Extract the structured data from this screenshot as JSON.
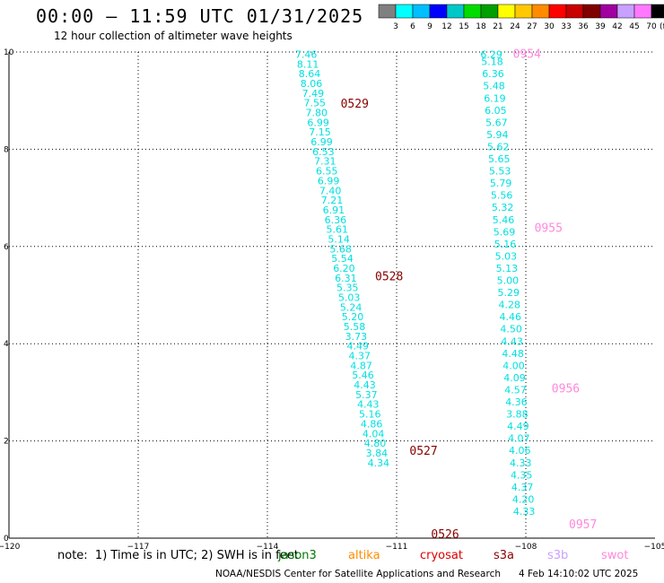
{
  "header": {
    "title": "00:00 – 11:59 UTC 01/31/2025",
    "subtitle": "12 hour collection of altimeter wave heights"
  },
  "colorbar": {
    "labels": [
      "3",
      "6",
      "9",
      "12",
      "15",
      "18",
      "21",
      "24",
      "27",
      "30",
      "33",
      "36",
      "39",
      "42",
      "45",
      "70"
    ],
    "unit": "(ft)",
    "colors": [
      "#808080",
      "#00ffff",
      "#00bfff",
      "#0000ff",
      "#00c8c8",
      "#00dc00",
      "#00a000",
      "#ffff00",
      "#ffc800",
      "#ff8c00",
      "#ff0000",
      "#c80000",
      "#800000",
      "#a000a0",
      "#c8a0ff",
      "#ff78ff",
      "#000000"
    ]
  },
  "footer": {
    "note": "note:  1) Time is in UTC; 2) SWH is in feet",
    "satellites": [
      {
        "name": "jason3",
        "color": "#007700"
      },
      {
        "name": "altika",
        "color": "#ff8c00"
      },
      {
        "name": "cryosat",
        "color": "#dd0000"
      },
      {
        "name": "s3a",
        "color": "#880000"
      },
      {
        "name": "s3b",
        "color": "#c8a0ff"
      },
      {
        "name": "swot",
        "color": "#ff88dd"
      }
    ],
    "credits": "NOAA/NESDIS Center for Satellite Applications and Research",
    "timestamp": "4 Feb 14:10:02 UTC 2025"
  },
  "chart_data": {
    "type": "scatter",
    "title": "",
    "xlabel": "",
    "ylabel": "",
    "xlim": [
      -120,
      -105
    ],
    "ylim": [
      0,
      10
    ],
    "x_ticks": [
      -120,
      -117,
      -114,
      -111,
      -108,
      -105
    ],
    "y_ticks": [
      0,
      2,
      4,
      6,
      8,
      10
    ],
    "x_tick_labels": [
      "−120",
      "−117",
      "−114",
      "−111",
      "−108",
      "−105"
    ],
    "y_tick_labels": [
      "0",
      "2",
      "4",
      "6",
      "8",
      "10"
    ],
    "grid": true,
    "value_color": "#00e0e0",
    "series": [
      {
        "name": "s3a",
        "points": [
          {
            "x": -113.1,
            "y": 9.88,
            "v": "7.46"
          },
          {
            "x": -113.06,
            "y": 9.68,
            "v": "8.11"
          },
          {
            "x": -113.02,
            "y": 9.48,
            "v": "8.64"
          },
          {
            "x": -112.98,
            "y": 9.28,
            "v": "8.06"
          },
          {
            "x": -112.94,
            "y": 9.08,
            "v": "7.49"
          },
          {
            "x": -112.9,
            "y": 8.88,
            "v": "7.55"
          },
          {
            "x": -112.86,
            "y": 8.68,
            "v": "7.80"
          },
          {
            "x": -112.82,
            "y": 8.48,
            "v": "6.99"
          },
          {
            "x": -112.78,
            "y": 8.28,
            "v": "7.15"
          },
          {
            "x": -112.74,
            "y": 8.08,
            "v": "6.99"
          },
          {
            "x": -112.7,
            "y": 7.88,
            "v": "6.53"
          },
          {
            "x": -112.66,
            "y": 7.68,
            "v": "7.31"
          },
          {
            "x": -112.62,
            "y": 7.48,
            "v": "6.55"
          },
          {
            "x": -112.58,
            "y": 7.28,
            "v": "6.99"
          },
          {
            "x": -112.54,
            "y": 7.08,
            "v": "7.40"
          },
          {
            "x": -112.5,
            "y": 6.88,
            "v": "7.21"
          },
          {
            "x": -112.46,
            "y": 6.68,
            "v": "6.91"
          },
          {
            "x": -112.42,
            "y": 6.48,
            "v": "6.36"
          },
          {
            "x": -112.38,
            "y": 6.28,
            "v": "5.61"
          },
          {
            "x": -112.34,
            "y": 6.08,
            "v": "5.14"
          },
          {
            "x": -112.3,
            "y": 5.88,
            "v": "5.68"
          },
          {
            "x": -112.26,
            "y": 5.68,
            "v": "5.54"
          },
          {
            "x": -112.22,
            "y": 5.48,
            "v": "6.20"
          },
          {
            "x": -112.18,
            "y": 5.28,
            "v": "6.31"
          },
          {
            "x": -112.14,
            "y": 5.08,
            "v": "5.35"
          },
          {
            "x": -112.1,
            "y": 4.88,
            "v": "5.03"
          },
          {
            "x": -112.06,
            "y": 4.68,
            "v": "5.24"
          },
          {
            "x": -112.02,
            "y": 4.48,
            "v": "5.20"
          },
          {
            "x": -111.98,
            "y": 4.28,
            "v": "5.58"
          },
          {
            "x": -111.94,
            "y": 4.08,
            "v": "3.73"
          },
          {
            "x": -111.9,
            "y": 3.88,
            "v": "4.49"
          },
          {
            "x": -111.86,
            "y": 3.68,
            "v": "4.37"
          },
          {
            "x": -111.82,
            "y": 3.48,
            "v": "4.87"
          },
          {
            "x": -111.78,
            "y": 3.28,
            "v": "5.46"
          },
          {
            "x": -111.74,
            "y": 3.08,
            "v": "4.43"
          },
          {
            "x": -111.7,
            "y": 2.88,
            "v": "5.37"
          },
          {
            "x": -111.66,
            "y": 2.68,
            "v": "4.43"
          },
          {
            "x": -111.62,
            "y": 2.48,
            "v": "5.16"
          },
          {
            "x": -111.58,
            "y": 2.28,
            "v": "4.86"
          },
          {
            "x": -111.54,
            "y": 2.08,
            "v": "4.04"
          },
          {
            "x": -111.5,
            "y": 1.88,
            "v": "4.80"
          },
          {
            "x": -111.46,
            "y": 1.68,
            "v": "3.84"
          },
          {
            "x": -111.42,
            "y": 1.48,
            "v": "4.34"
          }
        ],
        "time_labels": [
          {
            "x": -112.3,
            "y": 8.86,
            "text": "0529"
          },
          {
            "x": -111.5,
            "y": 5.3,
            "text": "0528"
          },
          {
            "x": -110.7,
            "y": 1.72,
            "text": "0527"
          },
          {
            "x": -110.2,
            "y": 0.0,
            "text": "0526"
          }
        ]
      },
      {
        "name": "swot",
        "points": [
          {
            "x": -108.8,
            "y": 9.88,
            "v": "6.29"
          },
          {
            "x": -108.78,
            "y": 9.73,
            "v": "5.18"
          },
          {
            "x": -108.76,
            "y": 9.48,
            "v": "6.36"
          },
          {
            "x": -108.74,
            "y": 9.23,
            "v": "5.48"
          },
          {
            "x": -108.72,
            "y": 8.98,
            "v": "6.19"
          },
          {
            "x": -108.7,
            "y": 8.73,
            "v": "6.05"
          },
          {
            "x": -108.68,
            "y": 8.48,
            "v": "5.67"
          },
          {
            "x": -108.66,
            "y": 8.23,
            "v": "5.94"
          },
          {
            "x": -108.64,
            "y": 7.98,
            "v": "5.62"
          },
          {
            "x": -108.62,
            "y": 7.73,
            "v": "5.65"
          },
          {
            "x": -108.6,
            "y": 7.48,
            "v": "5.53"
          },
          {
            "x": -108.58,
            "y": 7.23,
            "v": "5.79"
          },
          {
            "x": -108.56,
            "y": 6.98,
            "v": "5.56"
          },
          {
            "x": -108.54,
            "y": 6.73,
            "v": "5.32"
          },
          {
            "x": -108.52,
            "y": 6.48,
            "v": "5.46"
          },
          {
            "x": -108.5,
            "y": 6.23,
            "v": "5.69"
          },
          {
            "x": -108.48,
            "y": 5.98,
            "v": "5.16"
          },
          {
            "x": -108.46,
            "y": 5.73,
            "v": "5.03"
          },
          {
            "x": -108.44,
            "y": 5.48,
            "v": "5.13"
          },
          {
            "x": -108.42,
            "y": 5.23,
            "v": "5.00"
          },
          {
            "x": -108.4,
            "y": 4.98,
            "v": "5.29"
          },
          {
            "x": -108.38,
            "y": 4.73,
            "v": "4.28"
          },
          {
            "x": -108.36,
            "y": 4.48,
            "v": "4.46"
          },
          {
            "x": -108.34,
            "y": 4.23,
            "v": "4.50"
          },
          {
            "x": -108.32,
            "y": 3.98,
            "v": "4.43"
          },
          {
            "x": -108.3,
            "y": 3.73,
            "v": "4.48"
          },
          {
            "x": -108.28,
            "y": 3.48,
            "v": "4.00"
          },
          {
            "x": -108.26,
            "y": 3.23,
            "v": "4.09"
          },
          {
            "x": -108.24,
            "y": 2.98,
            "v": "4.57"
          },
          {
            "x": -108.22,
            "y": 2.73,
            "v": "4.36"
          },
          {
            "x": -108.2,
            "y": 2.48,
            "v": "3.88"
          },
          {
            "x": -108.18,
            "y": 2.23,
            "v": "4.49"
          },
          {
            "x": -108.16,
            "y": 1.98,
            "v": "4.07"
          },
          {
            "x": -108.14,
            "y": 1.73,
            "v": "4.06"
          },
          {
            "x": -108.12,
            "y": 1.48,
            "v": "4.33"
          },
          {
            "x": -108.1,
            "y": 1.23,
            "v": "4.35"
          },
          {
            "x": -108.08,
            "y": 0.98,
            "v": "4.37"
          },
          {
            "x": -108.06,
            "y": 0.73,
            "v": "4.20"
          },
          {
            "x": -108.04,
            "y": 0.48,
            "v": "4.33"
          }
        ],
        "time_labels": [
          {
            "x": -108.3,
            "y": 9.88,
            "text": "0954"
          },
          {
            "x": -107.8,
            "y": 6.3,
            "text": "0955"
          },
          {
            "x": -107.4,
            "y": 3.0,
            "text": "0956"
          },
          {
            "x": -107.0,
            "y": 0.2,
            "text": "0957"
          }
        ]
      }
    ]
  }
}
